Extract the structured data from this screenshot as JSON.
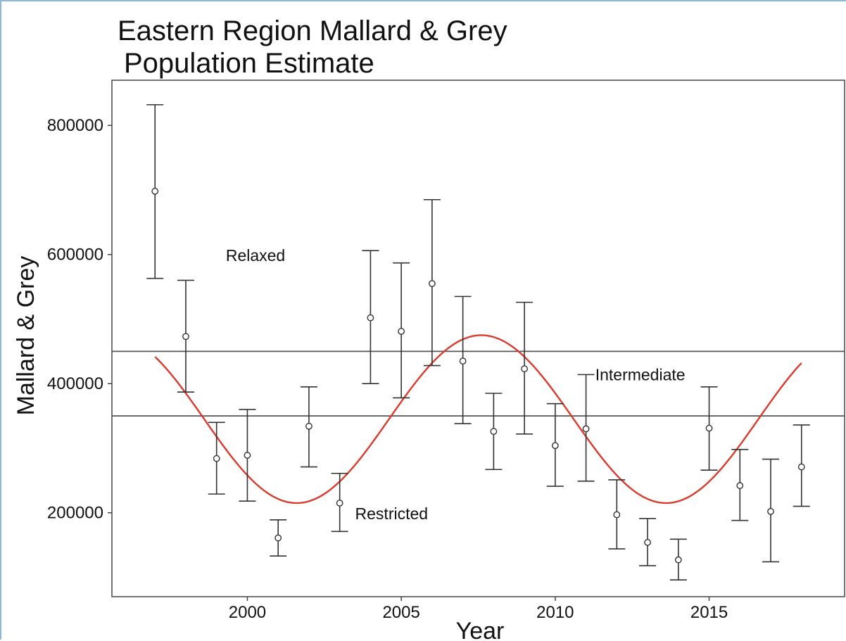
{
  "chart_data": {
    "type": "scatter",
    "title_line1": "Eastern Region Mallard & Grey",
    "title_line2": "Population Estimate",
    "xlabel": "Year",
    "ylabel": "Mallard & Grey",
    "xlim": [
      1995.6,
      2019.4
    ],
    "ylim": [
      70000,
      870000
    ],
    "x_ticks": [
      2000,
      2005,
      2010,
      2015
    ],
    "y_ticks": [
      200000,
      400000,
      600000,
      800000
    ],
    "x_tick_labels": [
      "2000",
      "2005",
      "2010",
      "2015"
    ],
    "y_tick_labels": [
      "200000",
      "400000",
      "600000",
      "800000"
    ],
    "grid": false,
    "points": [
      {
        "x": 1997,
        "y": 698000,
        "low": 563000,
        "high": 832000
      },
      {
        "x": 1998,
        "y": 473000,
        "low": 387000,
        "high": 560000
      },
      {
        "x": 1999,
        "y": 284000,
        "low": 229000,
        "high": 340000
      },
      {
        "x": 2000,
        "y": 289000,
        "low": 218000,
        "high": 360000
      },
      {
        "x": 2001,
        "y": 161000,
        "low": 133000,
        "high": 189000
      },
      {
        "x": 2002,
        "y": 334000,
        "low": 271000,
        "high": 395000
      },
      {
        "x": 2003,
        "y": 215000,
        "low": 171000,
        "high": 261000
      },
      {
        "x": 2004,
        "y": 502000,
        "low": 400000,
        "high": 606000
      },
      {
        "x": 2005,
        "y": 481000,
        "low": 378000,
        "high": 587000
      },
      {
        "x": 2006,
        "y": 555000,
        "low": 428000,
        "high": 685000
      },
      {
        "x": 2007,
        "y": 435000,
        "low": 338000,
        "high": 535000
      },
      {
        "x": 2008,
        "y": 326000,
        "low": 267000,
        "high": 385000
      },
      {
        "x": 2009,
        "y": 423000,
        "low": 322000,
        "high": 526000
      },
      {
        "x": 2010,
        "y": 304000,
        "low": 241000,
        "high": 369000
      },
      {
        "x": 2011,
        "y": 330000,
        "low": 249000,
        "high": 414000
      },
      {
        "x": 2012,
        "y": 197000,
        "low": 144000,
        "high": 251000
      },
      {
        "x": 2013,
        "y": 154000,
        "low": 118000,
        "high": 191000
      },
      {
        "x": 2014,
        "y": 127000,
        "low": 96000,
        "high": 159000
      },
      {
        "x": 2015,
        "y": 331000,
        "low": 266000,
        "high": 395000
      },
      {
        "x": 2016,
        "y": 242000,
        "low": 188000,
        "high": 298000
      },
      {
        "x": 2017,
        "y": 202000,
        "low": 124000,
        "high": 283000
      },
      {
        "x": 2018,
        "y": 271000,
        "low": 210000,
        "high": 336000
      }
    ],
    "fit_curve": {
      "color": "#d93a2b",
      "x_range": [
        1997,
        2018
      ],
      "mean": 345000,
      "amplitude": 130000,
      "period_years": 12,
      "peak_year": 2007.6
    },
    "thresholds": [
      {
        "y": 450000,
        "color": "#555555"
      },
      {
        "y": 350000,
        "color": "#555555"
      }
    ],
    "annotations": [
      {
        "text": "Relaxed",
        "x": 1999.3,
        "y": 590000
      },
      {
        "text": "Intermediate",
        "x": 2011.3,
        "y": 405000
      },
      {
        "text": "Restricted",
        "x": 2003.5,
        "y": 190000
      }
    ],
    "colors": {
      "points": "#333333",
      "errorbars": "#333333",
      "fit": "#d93a2b",
      "axes": "#444444"
    }
  }
}
